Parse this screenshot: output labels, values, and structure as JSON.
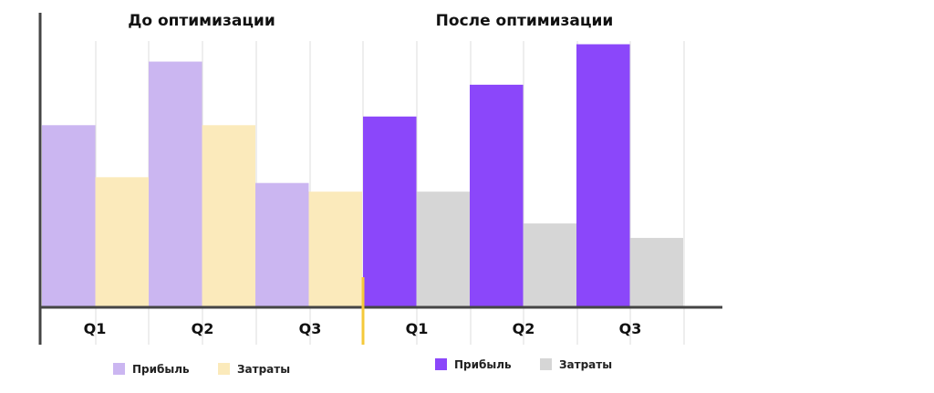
{
  "chart_data": [
    {
      "type": "bar",
      "title": "До оптимизации",
      "categories": [
        "Q1",
        "Q2",
        "Q3"
      ],
      "series": [
        {
          "name": "Прибыль",
          "color": "#cbb6f1",
          "values": [
            63,
            85,
            43
          ]
        },
        {
          "name": "Затраты",
          "color": "#fbeabb",
          "values": [
            45,
            63,
            40
          ]
        }
      ],
      "xlabel": "",
      "ylabel": "",
      "ylim": [
        0,
        100
      ],
      "grid": "vertical",
      "legend": "bottom"
    },
    {
      "type": "bar",
      "title": "После оптимизации",
      "categories": [
        "Q1",
        "Q2",
        "Q3"
      ],
      "series": [
        {
          "name": "Прибыль",
          "color": "#8b47fa",
          "values": [
            66,
            77,
            91
          ]
        },
        {
          "name": "Затраты",
          "color": "#d6d6d6",
          "values": [
            40,
            29,
            24
          ]
        }
      ],
      "xlabel": "",
      "ylabel": "",
      "ylim": [
        0,
        100
      ],
      "grid": "vertical",
      "legend": "bottom"
    }
  ],
  "colors": {
    "axis": "#454545",
    "grid": "#dddddd",
    "divider": "#f5c93a"
  }
}
